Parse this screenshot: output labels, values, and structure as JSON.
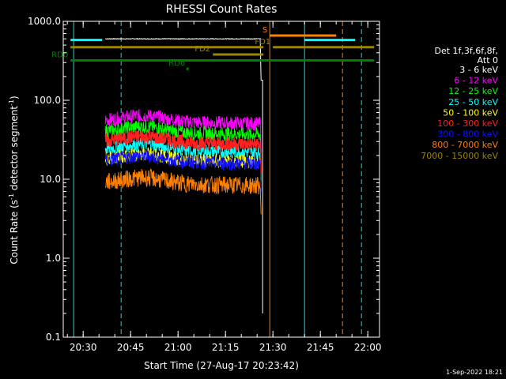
{
  "chart_data": {
    "type": "line",
    "title": "RHESSI Count Rates",
    "xlabel": "Start Time (27-Aug-17 20:23:42)",
    "ylabel_parts": [
      "Count Rate (s",
      "-1",
      " detector segment",
      "-1",
      ")"
    ],
    "yscale": "log",
    "ylim": [
      0.1,
      1000
    ],
    "x_ticks": [
      "20:30",
      "20:45",
      "21:00",
      "21:15",
      "21:30",
      "21:45",
      "22:00"
    ],
    "y_ticks": [
      "0.1",
      "1.0",
      "10.0",
      "100.0",
      "1000.0"
    ],
    "timestamp": "1-Sep-2022 18:21",
    "legend": {
      "header": [
        "Det 1f,3f,6f,8f,",
        "Att 0"
      ],
      "entries": [
        {
          "label": "3 - 6 keV",
          "color": "#ffffff"
        },
        {
          "label": "6 - 12 keV",
          "color": "#ff00ff"
        },
        {
          "label": "12 - 25 keV",
          "color": "#00ff00"
        },
        {
          "label": "25 - 50 keV",
          "color": "#00ffff"
        },
        {
          "label": "50 - 100 keV",
          "color": "#ffff00"
        },
        {
          "label": "100 - 300 keV",
          "color": "#ff2020"
        },
        {
          "label": "300 - 800 keV",
          "color": "#1010ff"
        },
        {
          "label": "800 - 7000 keV",
          "color": "#ff8000"
        },
        {
          "label": "7000 - 15000 keV",
          "color": "#9a8400"
        }
      ]
    },
    "series": [
      {
        "name": "3 - 6 keV",
        "color": "#ffffff",
        "start": "20:37",
        "end": "21:26",
        "level": 600
      },
      {
        "name": "6 - 12 keV",
        "color": "#ff00ff",
        "start": "20:37",
        "end": "21:26",
        "level": 55
      },
      {
        "name": "12 - 25 keV",
        "color": "#00ff00",
        "start": "20:37",
        "end": "21:26",
        "level": 40
      },
      {
        "name": "25 - 50 keV",
        "color": "#00ffff",
        "start": "20:37",
        "end": "21:26",
        "level": 24
      },
      {
        "name": "50 - 100 keV",
        "color": "#ffff00",
        "start": "20:37",
        "end": "21:26",
        "level": 18
      },
      {
        "name": "100 - 300 keV",
        "color": "#ff2020",
        "start": "20:37",
        "end": "21:26",
        "level": 30
      },
      {
        "name": "300 - 800 keV",
        "color": "#1010ff",
        "start": "20:37",
        "end": "21:26",
        "level": 17
      },
      {
        "name": "800 - 7000 keV",
        "color": "#ff8000",
        "start": "20:37",
        "end": "21:26",
        "level": 9
      }
    ],
    "flags": [
      {
        "label": "S",
        "color": "#ff8000",
        "start": "21:29",
        "end": "21:50",
        "level": 660
      },
      {
        "label": "FD1",
        "color": "#9a8400",
        "start": "21:30",
        "end": "22:02",
        "level": 470
      },
      {
        "label": "FD2",
        "color": "#9a8400",
        "start": "21:11",
        "end": "21:27",
        "level": 380
      },
      {
        "label": "RD0",
        "color": "#008000",
        "start": "20:26",
        "end": "22:02",
        "level": 320
      },
      {
        "label": "RD6",
        "color": "#008000",
        "start": "21:03",
        "end": "21:03",
        "level": 250
      }
    ],
    "saa_bars": [
      {
        "start": "20:26",
        "end": "20:36",
        "level": 580
      },
      {
        "start": "21:40",
        "end": "21:56",
        "level": 580
      }
    ],
    "attenuator_bar": {
      "start": "20:26",
      "end": "22:02",
      "level": 470
    },
    "vertical_markers": [
      {
        "time": "20:27",
        "color": "#00e0e0",
        "style": "solid"
      },
      {
        "time": "20:42",
        "color": "#00e0e0",
        "style": "dashed"
      },
      {
        "time": "21:29",
        "color": "#ff8000",
        "style": "solid"
      },
      {
        "time": "21:40",
        "color": "#00e0e0",
        "style": "solid"
      },
      {
        "time": "21:52",
        "color": "#ff8000",
        "style": "dashed"
      },
      {
        "time": "21:58",
        "color": "#00e0e0",
        "style": "dashed"
      }
    ]
  }
}
